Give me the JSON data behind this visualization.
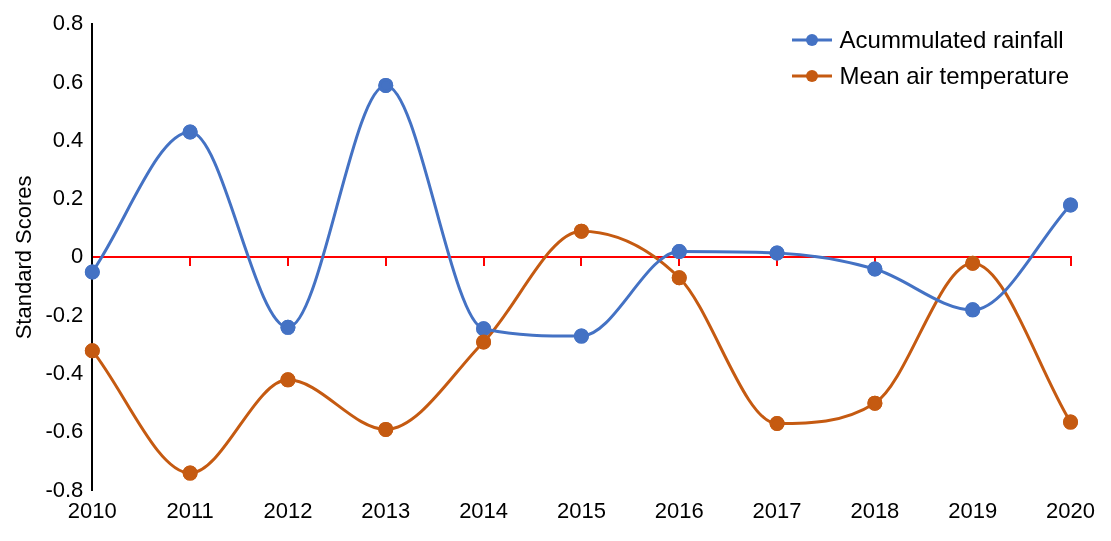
{
  "chart_data": {
    "type": "line",
    "ylabel": "Standard Scores",
    "categories": [
      "2010",
      "2011",
      "2012",
      "2013",
      "2014",
      "2015",
      "2016",
      "2017",
      "2018",
      "2019",
      "2020"
    ],
    "series": [
      {
        "name": "Acummulated rainfall",
        "color": "#4472c4",
        "values": [
          -0.05,
          0.43,
          -0.24,
          0.59,
          -0.245,
          -0.27,
          0.02,
          0.015,
          -0.04,
          -0.18,
          0.18
        ]
      },
      {
        "name": "Mean air temperature",
        "color": "#c55a11",
        "values": [
          -0.32,
          -0.74,
          -0.42,
          -0.59,
          -0.29,
          0.09,
          -0.07,
          -0.57,
          -0.5,
          -0.02,
          -0.565
        ]
      }
    ],
    "ylim": [
      -0.8,
      0.8
    ],
    "yticks": [
      -0.8,
      -0.6,
      -0.4,
      -0.2,
      0,
      0.2,
      0.4,
      0.6,
      0.8
    ],
    "ref_lines": [
      {
        "axis": "y",
        "value": 0,
        "color": "#ff0000"
      }
    ],
    "grid": false,
    "legend": "top right",
    "marker": "circle",
    "line_style": "solid"
  }
}
